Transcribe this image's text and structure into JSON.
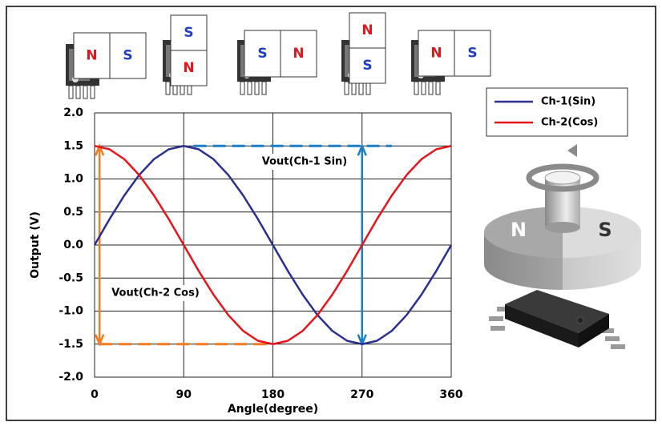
{
  "chart_data": {
    "type": "line",
    "x": [
      0,
      15,
      30,
      45,
      60,
      75,
      90,
      105,
      120,
      135,
      150,
      165,
      180,
      195,
      210,
      225,
      240,
      255,
      270,
      285,
      300,
      315,
      330,
      345,
      360
    ],
    "series": [
      {
        "name": "Ch-1(Sin)",
        "color": "#2b2f8f",
        "values": [
          0,
          0.39,
          0.75,
          1.06,
          1.3,
          1.45,
          1.5,
          1.45,
          1.3,
          1.06,
          0.75,
          0.39,
          0,
          -0.39,
          -0.75,
          -1.06,
          -1.3,
          -1.45,
          -1.5,
          -1.45,
          -1.3,
          -1.06,
          -0.75,
          -0.39,
          0
        ]
      },
      {
        "name": "Ch-2(Cos)",
        "color": "#e8141b",
        "values": [
          1.5,
          1.45,
          1.3,
          1.06,
          0.75,
          0.39,
          0,
          -0.39,
          -0.75,
          -1.06,
          -1.3,
          -1.45,
          -1.5,
          -1.45,
          -1.3,
          -1.06,
          -0.75,
          -0.39,
          0,
          0.39,
          0.75,
          1.06,
          1.3,
          1.45,
          1.5
        ]
      }
    ],
    "xlim": [
      0,
      360
    ],
    "xticks": [
      0,
      90,
      180,
      270,
      360
    ],
    "ylim": [
      -2,
      2
    ],
    "yticks": [
      {
        "value": -2,
        "label": "-2.0"
      },
      {
        "value": -1.5,
        "label": "-1.5"
      },
      {
        "value": -1,
        "label": "-1.0"
      },
      {
        "value": -0.5,
        "label": "-0.5"
      },
      {
        "value": 0,
        "label": "0.0"
      },
      {
        "value": 0.5,
        "label": "0.5"
      },
      {
        "value": 1,
        "label": "1.0"
      },
      {
        "value": 1.5,
        "label": "1.5"
      },
      {
        "value": 2,
        "label": "2.0"
      }
    ],
    "xlabel": "Angle(degree)",
    "ylabel": "Output (V)",
    "grid": true,
    "annotations": [
      "Vout(Ch-1 Sin)",
      "Vout(Ch-2 Cos)"
    ]
  },
  "magnets": [
    [
      "N",
      "S"
    ],
    [
      "S",
      "N"
    ],
    [
      "S",
      "N"
    ],
    [
      "N",
      "S"
    ],
    [
      "N",
      "S"
    ]
  ],
  "disk_labels": [
    "N",
    "S"
  ]
}
